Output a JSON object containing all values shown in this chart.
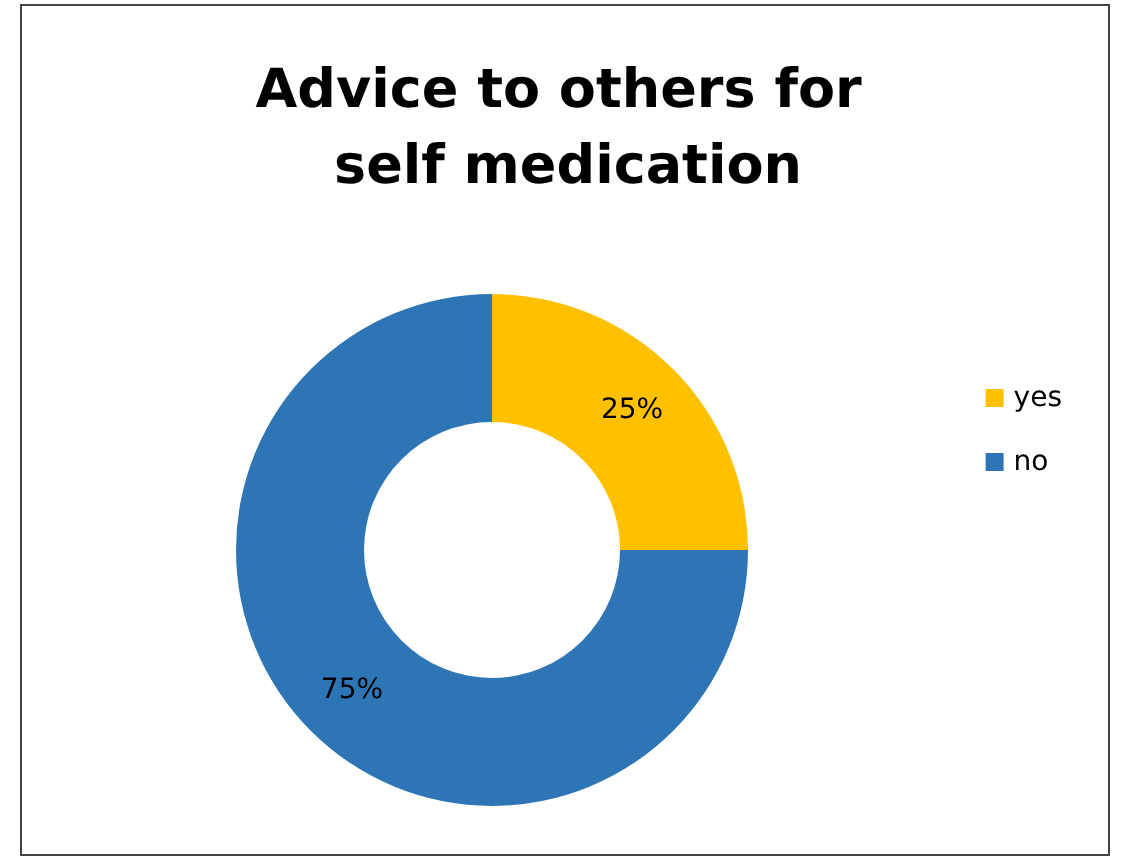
{
  "chart_data": {
    "type": "donut",
    "title": "Advice to others for self medication",
    "categories": [
      "yes",
      "no"
    ],
    "values": [
      25,
      75
    ],
    "colors": [
      "#ffc000",
      "#2e75b6"
    ],
    "value_labels": [
      "25%",
      "75%"
    ],
    "legend": "right"
  }
}
